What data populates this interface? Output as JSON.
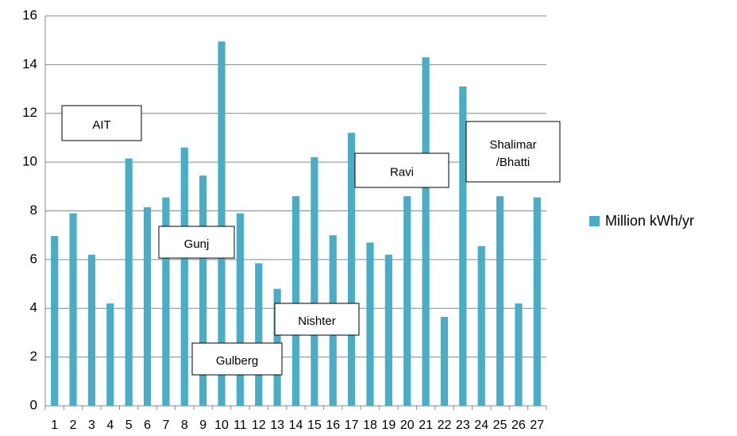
{
  "chart_data": {
    "type": "bar",
    "categories": [
      "1",
      "2",
      "3",
      "4",
      "5",
      "6",
      "7",
      "8",
      "9",
      "10",
      "11",
      "12",
      "13",
      "14",
      "15",
      "16",
      "17",
      "18",
      "19",
      "20",
      "21",
      "22",
      "23",
      "24",
      "25",
      "26",
      "27"
    ],
    "series": [
      {
        "name": "Million kWh/yr",
        "color": "#4bacc6",
        "values": [
          6.97,
          7.9,
          6.2,
          4.2,
          10.15,
          8.15,
          8.55,
          10.6,
          9.45,
          14.95,
          7.9,
          5.85,
          4.8,
          8.6,
          10.2,
          7.0,
          11.2,
          6.7,
          6.2,
          8.6,
          14.3,
          3.65,
          13.1,
          6.55,
          8.6,
          4.2,
          8.55
        ]
      }
    ],
    "ylim": [
      0,
      16
    ],
    "yticks": [
      0,
      2,
      4,
      6,
      8,
      10,
      12,
      14,
      16
    ],
    "grid": true,
    "legend": "right",
    "annotations": [
      {
        "lines": [
          "AIT"
        ]
      },
      {
        "lines": [
          "Gunj"
        ]
      },
      {
        "lines": [
          "Gulberg"
        ]
      },
      {
        "lines": [
          "Nishter"
        ]
      },
      {
        "lines": [
          "Ravi"
        ]
      },
      {
        "lines": [
          "Shalimar",
          "/Bhatti"
        ]
      }
    ]
  }
}
